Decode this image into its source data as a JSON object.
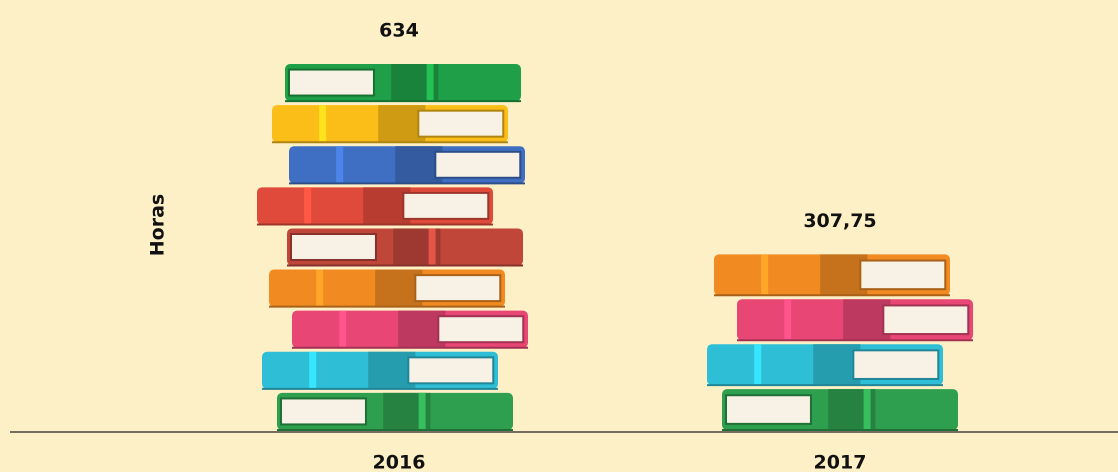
{
  "chart_data": {
    "type": "bar",
    "y_label": "Horas",
    "categories": [
      "2016",
      "2017"
    ],
    "values": [
      634,
      307.75
    ],
    "value_labels": [
      "634",
      "307,75"
    ],
    "colors": [
      "#2e9e4f",
      "#2ebfd6",
      "#e84675",
      "#f28a22",
      "#c0463a",
      "#e04a3a",
      "#3f6fc2",
      "#fbbd17",
      "#1fa048"
    ]
  }
}
